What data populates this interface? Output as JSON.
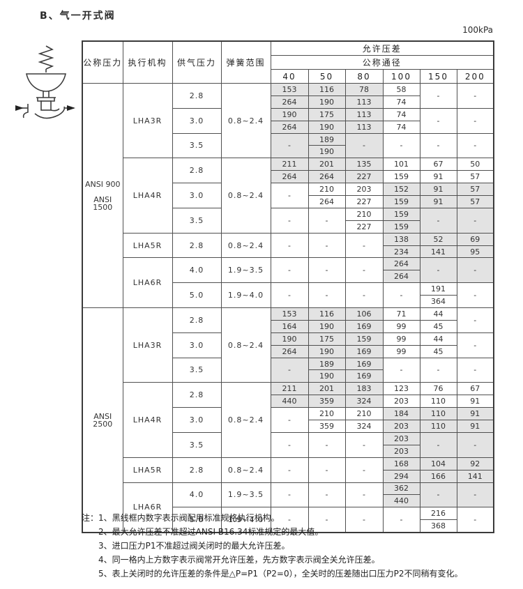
{
  "title": "B、气一开式阀",
  "unit": "100kPa",
  "table": {
    "headers": {
      "pressure": "公称压力",
      "actuator": "执行机构",
      "supply": "供气压力",
      "spring": "弹簧范围",
      "dp": "允许压差",
      "dn": "公称通径",
      "sizes": [
        "40",
        "50",
        "80",
        "100",
        "150",
        "200"
      ]
    },
    "rows": [
      [
        {
          "t": "ANSI 900\n\nANSI 1500",
          "rs": 18,
          "cls": "pressure"
        },
        {
          "t": "LHA3R",
          "rs": 6,
          "cls": "lab"
        },
        {
          "t": "2.8",
          "rs": 2,
          "cls": "lab"
        },
        {
          "t": "0.8~2.4",
          "rs": 6,
          "cls": "lab"
        },
        {
          "t": "153",
          "g": 1
        },
        {
          "t": "116",
          "g": 1
        },
        {
          "t": "78",
          "g": 1
        },
        {
          "t": "58"
        },
        {
          "t": "-",
          "rs": 2
        },
        {
          "t": "-",
          "rs": 2
        }
      ],
      [
        {
          "t": "264",
          "g": 1
        },
        {
          "t": "190",
          "g": 1
        },
        {
          "t": "113",
          "g": 1
        },
        {
          "t": "74"
        }
      ],
      [
        {
          "t": "3.0",
          "rs": 2,
          "cls": "lab"
        },
        {
          "t": "190",
          "g": 1
        },
        {
          "t": "175",
          "g": 1
        },
        {
          "t": "113",
          "g": 1
        },
        {
          "t": "74"
        },
        {
          "t": "-",
          "rs": 2
        },
        {
          "t": "-",
          "rs": 2
        }
      ],
      [
        {
          "t": "264",
          "g": 1
        },
        {
          "t": "190",
          "g": 1
        },
        {
          "t": "113",
          "g": 1
        },
        {
          "t": "74"
        }
      ],
      [
        {
          "t": "3.5",
          "rs": 2,
          "cls": "lab"
        },
        {
          "t": "-",
          "rs": 2,
          "g": 1
        },
        {
          "t": "189",
          "g": 1
        },
        {
          "t": "-",
          "rs": 2,
          "g": 1
        },
        {
          "t": "-",
          "rs": 2
        },
        {
          "t": "-",
          "rs": 2
        },
        {
          "t": "-",
          "rs": 2
        }
      ],
      [
        {
          "t": "190",
          "g": 1
        }
      ],
      [
        {
          "t": "LHA4R",
          "rs": 6,
          "cls": "lab"
        },
        {
          "t": "2.8",
          "rs": 2,
          "cls": "lab"
        },
        {
          "t": "0.8~2.4",
          "rs": 6,
          "cls": "lab"
        },
        {
          "t": "211",
          "g": 1
        },
        {
          "t": "201",
          "g": 1
        },
        {
          "t": "135",
          "g": 1
        },
        {
          "t": "101"
        },
        {
          "t": "67"
        },
        {
          "t": "50"
        }
      ],
      [
        {
          "t": "264",
          "g": 1
        },
        {
          "t": "264",
          "g": 1
        },
        {
          "t": "227",
          "g": 1
        },
        {
          "t": "159"
        },
        {
          "t": "91"
        },
        {
          "t": "57"
        }
      ],
      [
        {
          "t": "3.0",
          "rs": 2,
          "cls": "lab"
        },
        {
          "t": "-",
          "rs": 2
        },
        {
          "t": "210"
        },
        {
          "t": "203"
        },
        {
          "t": "152",
          "g": 1
        },
        {
          "t": "91",
          "g": 1
        },
        {
          "t": "57",
          "g": 1
        }
      ],
      [
        {
          "t": "264"
        },
        {
          "t": "227"
        },
        {
          "t": "159",
          "g": 1
        },
        {
          "t": "91",
          "g": 1
        },
        {
          "t": "57",
          "g": 1
        }
      ],
      [
        {
          "t": "3.5",
          "rs": 2,
          "cls": "lab"
        },
        {
          "t": "-",
          "rs": 2
        },
        {
          "t": "-",
          "rs": 2
        },
        {
          "t": "210"
        },
        {
          "t": "159",
          "g": 1
        },
        {
          "t": "-",
          "rs": 2,
          "g": 1
        },
        {
          "t": "-",
          "rs": 2,
          "g": 1
        }
      ],
      [
        {
          "t": "227"
        },
        {
          "t": "159",
          "g": 1
        }
      ],
      [
        {
          "t": "LHA5R",
          "rs": 2,
          "cls": "lab"
        },
        {
          "t": "2.8",
          "rs": 2,
          "cls": "lab"
        },
        {
          "t": "0.8~2.4",
          "rs": 2,
          "cls": "lab"
        },
        {
          "t": "-",
          "rs": 2
        },
        {
          "t": "-",
          "rs": 2
        },
        {
          "t": "-",
          "rs": 2
        },
        {
          "t": "138",
          "g": 1
        },
        {
          "t": "52",
          "g": 1
        },
        {
          "t": "69",
          "g": 1
        }
      ],
      [
        {
          "t": "234",
          "g": 1
        },
        {
          "t": "141",
          "g": 1
        },
        {
          "t": "95",
          "g": 1
        }
      ],
      [
        {
          "t": "LHA6R",
          "rs": 4,
          "cls": "lab"
        },
        {
          "t": "4.0",
          "rs": 2,
          "cls": "lab"
        },
        {
          "t": "1.9~3.5",
          "rs": 2,
          "cls": "lab"
        },
        {
          "t": "-",
          "rs": 2
        },
        {
          "t": "-",
          "rs": 2
        },
        {
          "t": "-",
          "rs": 2
        },
        {
          "t": "264",
          "g": 1
        },
        {
          "t": "-",
          "rs": 2,
          "g": 1
        },
        {
          "t": "-",
          "rs": 2,
          "g": 1
        }
      ],
      [
        {
          "t": "264",
          "g": 1
        }
      ],
      [
        {
          "t": "5.0",
          "rs": 2,
          "cls": "lab"
        },
        {
          "t": "1.9~4.0",
          "rs": 2,
          "cls": "lab"
        },
        {
          "t": "-",
          "rs": 2
        },
        {
          "t": "-",
          "rs": 2
        },
        {
          "t": "-",
          "rs": 2
        },
        {
          "t": "-",
          "rs": 2
        },
        {
          "t": "191"
        },
        {
          "t": "-",
          "rs": 2
        }
      ],
      [
        {
          "t": "364"
        }
      ],
      [
        {
          "t": "ANSI 2500",
          "rs": 18,
          "cls": "pressure"
        },
        {
          "t": "LHA3R",
          "rs": 6,
          "cls": "lab"
        },
        {
          "t": "2.8",
          "rs": 2,
          "cls": "lab"
        },
        {
          "t": "0.8~2.4",
          "rs": 6,
          "cls": "lab"
        },
        {
          "t": "153",
          "g": 1
        },
        {
          "t": "116",
          "g": 1
        },
        {
          "t": "106",
          "g": 1
        },
        {
          "t": "71"
        },
        {
          "t": "44"
        },
        {
          "t": "-",
          "rs": 2
        }
      ],
      [
        {
          "t": "164",
          "g": 1
        },
        {
          "t": "190",
          "g": 1
        },
        {
          "t": "169",
          "g": 1
        },
        {
          "t": "99"
        },
        {
          "t": "45"
        }
      ],
      [
        {
          "t": "3.0",
          "rs": 2,
          "cls": "lab"
        },
        {
          "t": "190",
          "g": 1
        },
        {
          "t": "175",
          "g": 1
        },
        {
          "t": "159",
          "g": 1
        },
        {
          "t": "99"
        },
        {
          "t": "44"
        },
        {
          "t": "-",
          "rs": 2
        }
      ],
      [
        {
          "t": "264",
          "g": 1
        },
        {
          "t": "190",
          "g": 1
        },
        {
          "t": "169",
          "g": 1
        },
        {
          "t": "99"
        },
        {
          "t": "45"
        }
      ],
      [
        {
          "t": "3.5",
          "rs": 2,
          "cls": "lab"
        },
        {
          "t": "-",
          "rs": 2,
          "g": 1
        },
        {
          "t": "189",
          "g": 1
        },
        {
          "t": "169",
          "g": 1
        },
        {
          "t": "-",
          "rs": 2
        },
        {
          "t": "-",
          "rs": 2
        },
        {
          "t": "-",
          "rs": 2
        }
      ],
      [
        {
          "t": "190",
          "g": 1
        },
        {
          "t": "169",
          "g": 1
        }
      ],
      [
        {
          "t": "LHA4R",
          "rs": 6,
          "cls": "lab"
        },
        {
          "t": "2.8",
          "rs": 2,
          "cls": "lab"
        },
        {
          "t": "0.8~2.4",
          "rs": 6,
          "cls": "lab"
        },
        {
          "t": "211",
          "g": 1
        },
        {
          "t": "201",
          "g": 1
        },
        {
          "t": "183",
          "g": 1
        },
        {
          "t": "123"
        },
        {
          "t": "76"
        },
        {
          "t": "67"
        }
      ],
      [
        {
          "t": "440",
          "g": 1
        },
        {
          "t": "359",
          "g": 1
        },
        {
          "t": "324",
          "g": 1
        },
        {
          "t": "203"
        },
        {
          "t": "110"
        },
        {
          "t": "91"
        }
      ],
      [
        {
          "t": "3.0",
          "rs": 2,
          "cls": "lab"
        },
        {
          "t": "-",
          "rs": 2
        },
        {
          "t": "210"
        },
        {
          "t": "210"
        },
        {
          "t": "184",
          "g": 1
        },
        {
          "t": "110",
          "g": 1
        },
        {
          "t": "91",
          "g": 1
        }
      ],
      [
        {
          "t": "359"
        },
        {
          "t": "324"
        },
        {
          "t": "203",
          "g": 1
        },
        {
          "t": "110",
          "g": 1
        },
        {
          "t": "91",
          "g": 1
        }
      ],
      [
        {
          "t": "3.5",
          "rs": 2,
          "cls": "lab"
        },
        {
          "t": "-",
          "rs": 2
        },
        {
          "t": "-",
          "rs": 2
        },
        {
          "t": "-",
          "rs": 2
        },
        {
          "t": "203",
          "g": 1
        },
        {
          "t": "-",
          "rs": 2,
          "g": 1
        },
        {
          "t": "-",
          "rs": 2,
          "g": 1
        }
      ],
      [
        {
          "t": "203",
          "g": 1
        }
      ],
      [
        {
          "t": "LHA5R",
          "rs": 2,
          "cls": "lab"
        },
        {
          "t": "2.8",
          "rs": 2,
          "cls": "lab"
        },
        {
          "t": "0.8~2.4",
          "rs": 2,
          "cls": "lab"
        },
        {
          "t": "-",
          "rs": 2
        },
        {
          "t": "-",
          "rs": 2
        },
        {
          "t": "-",
          "rs": 2
        },
        {
          "t": "168",
          "g": 1
        },
        {
          "t": "104",
          "g": 1
        },
        {
          "t": "92",
          "g": 1
        }
      ],
      [
        {
          "t": "294",
          "g": 1
        },
        {
          "t": "166",
          "g": 1
        },
        {
          "t": "141",
          "g": 1
        }
      ],
      [
        {
          "t": "LHA6R",
          "rs": 4,
          "cls": "lab"
        },
        {
          "t": "4.0",
          "rs": 2,
          "cls": "lab"
        },
        {
          "t": "1.9~3.5",
          "rs": 2,
          "cls": "lab"
        },
        {
          "t": "-",
          "rs": 2
        },
        {
          "t": "-",
          "rs": 2
        },
        {
          "t": "-",
          "rs": 2
        },
        {
          "t": "362",
          "g": 1
        },
        {
          "t": "-",
          "rs": 2,
          "g": 1
        },
        {
          "t": "-",
          "rs": 2,
          "g": 1
        }
      ],
      [
        {
          "t": "440",
          "g": 1
        }
      ],
      [
        {
          "t": "5.0",
          "rs": 2,
          "cls": "lab"
        },
        {
          "t": "1.9~4.0",
          "rs": 2,
          "cls": "lab"
        },
        {
          "t": "-",
          "rs": 2
        },
        {
          "t": "-",
          "rs": 2
        },
        {
          "t": "-",
          "rs": 2
        },
        {
          "t": "-",
          "rs": 2
        },
        {
          "t": "216"
        },
        {
          "t": "-",
          "rs": 2
        }
      ],
      [
        {
          "t": "368"
        }
      ]
    ],
    "shaded_color": "#e3e3e3"
  },
  "notes": {
    "prefix": "注：",
    "items": [
      "1、黑线框内数字表示阀配用标准规格执行机构。",
      "2、最大允许压差不准超过ANSI B16.34标准规定的最大值。",
      "3、进口压力P1不准超过阀关闭时的最大允许压差。",
      "4、同一格内上方数字表示阀常开允许压差，先方数字表示阀全关允许压差。",
      "5、表上关闭时的允许压差的条件是△P=P1（P2=0），全关时的压差随出口压力P2不同稍有变化。"
    ]
  }
}
